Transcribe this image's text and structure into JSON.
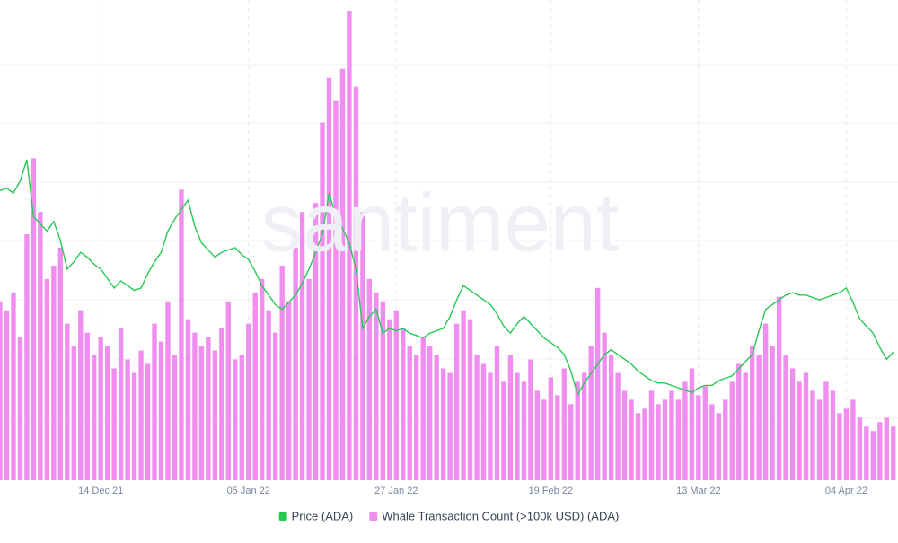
{
  "chart_data": {
    "type": "bar-line",
    "watermark": "santiment",
    "categories": [
      null,
      null,
      null,
      null,
      null,
      null,
      null,
      null,
      null,
      null,
      null,
      null,
      null,
      null,
      null,
      "14 Dec 21",
      null,
      null,
      null,
      null,
      null,
      null,
      null,
      null,
      null,
      null,
      null,
      null,
      null,
      null,
      null,
      null,
      null,
      null,
      null,
      null,
      null,
      "05 Jan 22",
      null,
      null,
      null,
      null,
      null,
      null,
      null,
      null,
      null,
      null,
      null,
      null,
      null,
      null,
      null,
      null,
      null,
      null,
      null,
      null,
      null,
      "27 Jan 22",
      null,
      null,
      null,
      null,
      null,
      null,
      null,
      null,
      null,
      null,
      null,
      null,
      null,
      null,
      null,
      null,
      null,
      null,
      null,
      null,
      null,
      null,
      "19 Feb 22",
      null,
      null,
      null,
      null,
      null,
      null,
      null,
      null,
      null,
      null,
      null,
      null,
      null,
      null,
      null,
      null,
      null,
      null,
      null,
      null,
      null,
      "13 Mar 22",
      null,
      null,
      null,
      null,
      null,
      null,
      null,
      null,
      null,
      null,
      null,
      null,
      null,
      null,
      null,
      null,
      null,
      null,
      null,
      null,
      null,
      "04 Apr 22",
      null,
      null,
      null,
      null,
      null,
      null,
      null
    ],
    "series": [
      {
        "name": "Price (ADA)",
        "color": "#26c953",
        "kind": "line",
        "values": [
          1.61,
          1.62,
          1.6,
          1.65,
          1.74,
          1.5,
          1.47,
          1.44,
          1.48,
          1.4,
          1.28,
          1.31,
          1.35,
          1.33,
          1.3,
          1.28,
          1.24,
          1.2,
          1.23,
          1.21,
          1.19,
          1.2,
          1.26,
          1.31,
          1.35,
          1.44,
          1.49,
          1.53,
          1.57,
          1.46,
          1.39,
          1.36,
          1.33,
          1.35,
          1.36,
          1.37,
          1.34,
          1.32,
          1.27,
          1.21,
          1.17,
          1.13,
          1.11,
          1.14,
          1.17,
          1.22,
          1.28,
          1.35,
          1.43,
          1.6,
          1.5,
          1.45,
          1.39,
          1.28,
          1.03,
          1.08,
          1.11,
          1.01,
          1.03,
          1.02,
          1.03,
          1.01,
          1.0,
          0.99,
          1.01,
          1.02,
          1.03,
          1.08,
          1.15,
          1.21,
          1.19,
          1.17,
          1.15,
          1.13,
          1.09,
          1.04,
          1.01,
          1.05,
          1.08,
          1.05,
          1.02,
          0.99,
          0.97,
          0.95,
          0.92,
          0.85,
          0.75,
          0.8,
          0.84,
          0.88,
          0.92,
          0.94,
          0.92,
          0.9,
          0.88,
          0.85,
          0.83,
          0.81,
          0.8,
          0.8,
          0.79,
          0.78,
          0.77,
          0.76,
          0.78,
          0.79,
          0.79,
          0.81,
          0.82,
          0.83,
          0.86,
          0.89,
          0.92,
          1.02,
          1.11,
          1.13,
          1.15,
          1.17,
          1.18,
          1.17,
          1.17,
          1.16,
          1.15,
          1.16,
          1.17,
          1.18,
          1.2,
          1.14,
          1.07,
          1.04,
          1.01,
          0.95,
          0.9,
          0.93
        ]
      },
      {
        "name": "Whale Transaction Count (>100k USD) (ADA)",
        "color": "#f08ef0",
        "kind": "bar",
        "values": [
          40,
          38,
          42,
          32,
          55,
          72,
          60,
          45,
          48,
          52,
          35,
          30,
          38,
          33,
          28,
          32,
          30,
          25,
          34,
          27,
          24,
          29,
          26,
          35,
          31,
          40,
          28,
          65,
          36,
          33,
          30,
          32,
          29,
          34,
          40,
          27,
          28,
          35,
          42,
          45,
          38,
          33,
          48,
          40,
          52,
          60,
          45,
          62,
          80,
          90,
          85,
          92,
          105,
          88,
          60,
          45,
          42,
          40,
          36,
          38,
          34,
          30,
          28,
          32,
          30,
          28,
          25,
          24,
          35,
          38,
          36,
          28,
          26,
          24,
          30,
          22,
          28,
          24,
          22,
          27,
          20,
          18,
          23,
          19,
          25,
          17,
          22,
          24,
          30,
          43,
          33,
          28,
          24,
          20,
          18,
          15,
          16,
          20,
          17,
          18,
          20,
          18,
          22,
          25,
          19,
          21,
          17,
          15,
          18,
          22,
          26,
          24,
          30,
          28,
          35,
          30,
          41,
          28,
          25,
          22,
          24,
          20,
          18,
          22,
          20,
          15,
          16,
          18,
          14,
          12,
          11,
          13,
          14,
          12
        ]
      }
    ],
    "legend": "bottom",
    "grid": true
  }
}
